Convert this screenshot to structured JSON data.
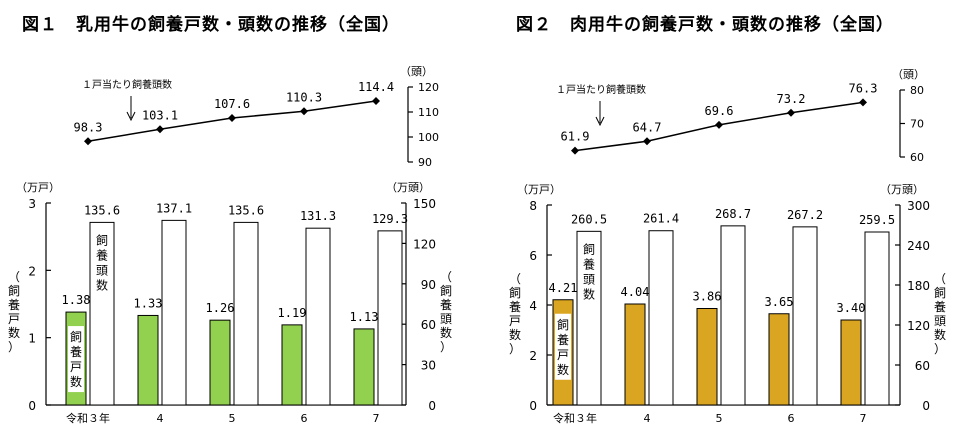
{
  "figure1": {
    "title": "図１　乳用牛の飼養戸数・頭数の推移（全国）",
    "line_label": "１戸当たり飼養頭数",
    "line_unit": "（頭）",
    "line_ticks": [
      "90",
      "100",
      "110",
      "120"
    ],
    "bar_left_unit": "（万戸）",
    "bar_right_unit": "（万頭）",
    "left_ticks": [
      "0",
      "1",
      "2",
      "3"
    ],
    "right_ticks": [
      "0",
      "30",
      "60",
      "90",
      "120",
      "150"
    ],
    "left_axis_label": "（飼養戸数）",
    "right_axis_label": "（飼養頭数）",
    "in_bar_label_households": "飼養戸数",
    "in_bar_label_head": "飼養頭数",
    "bar_color": "#92D050"
  },
  "figure2": {
    "title": "図２　肉用牛の飼養戸数・頭数の推移（全国）",
    "line_label": "１戸当たり飼養頭数",
    "line_unit": "（頭）",
    "line_ticks": [
      "60",
      "70",
      "80"
    ],
    "bar_left_unit": "（万戸）",
    "bar_right_unit": "（万頭）",
    "left_ticks": [
      "0",
      "2",
      "4",
      "6",
      "8"
    ],
    "right_ticks": [
      "0",
      "60",
      "120",
      "180",
      "240",
      "300"
    ],
    "left_axis_label": "（飼養戸数）",
    "right_axis_label": "（飼養頭数）",
    "in_bar_label_households": "飼養戸数",
    "in_bar_label_head": "飼養頭数",
    "bar_color": "#DAA520"
  },
  "chart_data": [
    {
      "type": "bar",
      "chart": "figure1",
      "categories": [
        "令和３年",
        "4",
        "5",
        "6",
        "7"
      ],
      "series": [
        {
          "name": "飼養戸数",
          "axis": "left",
          "values": [
            1.38,
            1.33,
            1.26,
            1.19,
            1.13
          ],
          "labels": [
            "1.38",
            "1.33",
            "1.26",
            "1.19",
            "1.13"
          ]
        },
        {
          "name": "飼養頭数",
          "axis": "right",
          "values": [
            135.6,
            137.1,
            135.6,
            131.3,
            129.3
          ],
          "labels": [
            "135.6",
            "137.1",
            "135.6",
            "131.3",
            "129.3"
          ]
        }
      ],
      "ylim_left": [
        0,
        3
      ],
      "ylim_right": [
        0,
        150
      ]
    },
    {
      "type": "line",
      "chart": "figure1",
      "categories": [
        "令和３年",
        "4",
        "5",
        "6",
        "7"
      ],
      "series": [
        {
          "name": "１戸当たり飼養頭数",
          "values": [
            98.3,
            103.1,
            107.6,
            110.3,
            114.4
          ],
          "labels": [
            "98.3",
            "103.1",
            "107.6",
            "110.3",
            "114.4"
          ]
        }
      ],
      "ylim": [
        90,
        120
      ]
    },
    {
      "type": "bar",
      "chart": "figure2",
      "categories": [
        "令和３年",
        "4",
        "5",
        "6",
        "7"
      ],
      "series": [
        {
          "name": "飼養戸数",
          "axis": "left",
          "values": [
            4.21,
            4.04,
            3.86,
            3.65,
            3.4
          ],
          "labels": [
            "4.21",
            "4.04",
            "3.86",
            "3.65",
            "3.40"
          ]
        },
        {
          "name": "飼養頭数",
          "axis": "right",
          "values": [
            260.5,
            261.4,
            268.7,
            267.2,
            259.5
          ],
          "labels": [
            "260.5",
            "261.4",
            "268.7",
            "267.2",
            "259.5"
          ]
        }
      ],
      "ylim_left": [
        0,
        8
      ],
      "ylim_right": [
        0,
        300
      ]
    },
    {
      "type": "line",
      "chart": "figure2",
      "categories": [
        "令和３年",
        "4",
        "5",
        "6",
        "7"
      ],
      "series": [
        {
          "name": "１戸当たり飼養頭数",
          "values": [
            61.9,
            64.7,
            69.6,
            73.2,
            76.3
          ],
          "labels": [
            "61.9",
            "64.7",
            "69.6",
            "73.2",
            "76.3"
          ]
        }
      ],
      "ylim": [
        60,
        80
      ]
    }
  ]
}
